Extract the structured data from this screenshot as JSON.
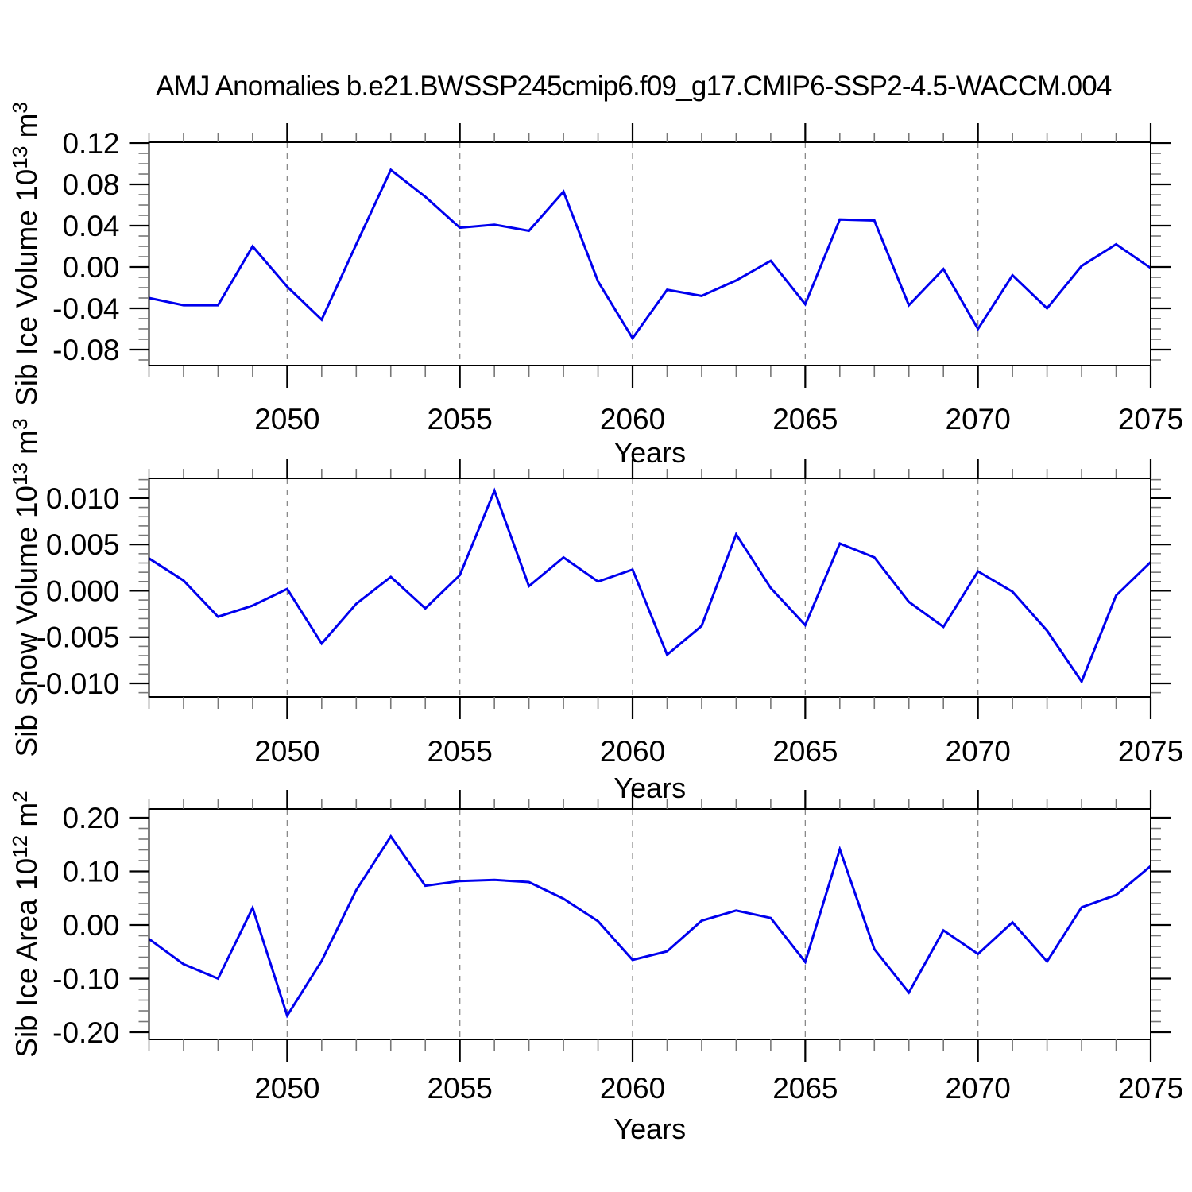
{
  "title": "AMJ Anomalies b.e21.BWSSP245cmip6.f09_g17.CMIP6-SSP2-4.5-WACCM.004",
  "figure": {
    "background": "#ffffff",
    "line_color": "#0000ee",
    "axis_color": "#000000",
    "minor_tick_color": "#777777",
    "grid_color": "#8a8a8a"
  },
  "chart_data": [
    {
      "type": "line",
      "id": "sib-ice-volume",
      "ylabel_text": "Sib Ice Volume 10^13 m^3",
      "ylabel_parts": [
        {
          "t": "Sib Ice Volume 10"
        },
        {
          "t": "13",
          "sup": true
        },
        {
          "t": " m"
        },
        {
          "t": "3",
          "sup": true
        }
      ],
      "xlabel": "Years",
      "x": [
        2046,
        2047,
        2048,
        2049,
        2050,
        2051,
        2052,
        2053,
        2054,
        2055,
        2056,
        2057,
        2058,
        2059,
        2060,
        2061,
        2062,
        2063,
        2064,
        2065,
        2066,
        2067,
        2068,
        2069,
        2070,
        2071,
        2072,
        2073,
        2074,
        2075
      ],
      "values": [
        -0.03,
        -0.037,
        -0.037,
        0.02,
        -0.019,
        -0.051,
        0.022,
        0.094,
        0.068,
        0.038,
        0.041,
        0.035,
        0.073,
        -0.014,
        -0.069,
        -0.022,
        -0.028,
        -0.013,
        0.006,
        -0.036,
        0.046,
        0.045,
        -0.037,
        -0.002,
        -0.06,
        -0.008,
        -0.04,
        0.001,
        0.022,
        -0.001
      ],
      "xlim": [
        2046,
        2075
      ],
      "ylim": [
        -0.0954,
        0.1208
      ],
      "yticks": [
        -0.08,
        -0.04,
        0,
        0.04,
        0.08,
        0.12
      ],
      "ytick_labels": [
        "-0.08",
        "-0.04",
        "0.00",
        "0.04",
        "0.08",
        "0.12"
      ],
      "y_minor_step": 0.01,
      "xticks": [
        2050,
        2055,
        2060,
        2065,
        2070,
        2075
      ],
      "xtick_labels": [
        "2050",
        "2055",
        "2060",
        "2065",
        "2070",
        "2075"
      ],
      "grid_years": [
        2050,
        2055,
        2060,
        2065,
        2070
      ],
      "grid": "dashed-vertical"
    },
    {
      "type": "line",
      "id": "sib-snow-volume",
      "ylabel_text": "Sib Snow Volume 10^13 m^3",
      "ylabel_parts": [
        {
          "t": "Sib Snow Volume 10"
        },
        {
          "t": "13",
          "sup": true
        },
        {
          "t": " m"
        },
        {
          "t": "3",
          "sup": true
        }
      ],
      "xlabel": "Years",
      "x": [
        2046,
        2047,
        2048,
        2049,
        2050,
        2051,
        2052,
        2053,
        2054,
        2055,
        2056,
        2057,
        2058,
        2059,
        2060,
        2061,
        2062,
        2063,
        2064,
        2065,
        2066,
        2067,
        2068,
        2069,
        2070,
        2071,
        2072,
        2073,
        2074,
        2075
      ],
      "values": [
        0.0035,
        0.0011,
        -0.0028,
        -0.0016,
        0.0002,
        -0.0057,
        -0.0014,
        0.0015,
        -0.0019,
        0.0017,
        0.0108,
        0.0005,
        0.0036,
        0.001,
        0.0023,
        -0.0069,
        -0.0038,
        0.0061,
        0.0003,
        -0.0037,
        0.0051,
        0.0036,
        -0.0012,
        -0.0039,
        0.0021,
        -0.0001,
        -0.0043,
        -0.0098,
        -0.0005,
        0.0031
      ],
      "xlim": [
        2046,
        2075
      ],
      "ylim": [
        -0.01146,
        0.01214
      ],
      "yticks": [
        -0.01,
        -0.005,
        0,
        0.005,
        0.01
      ],
      "ytick_labels": [
        "-0.010",
        "-0.005",
        "0.000",
        "0.005",
        "0.010"
      ],
      "y_minor_step": 0.001,
      "xticks": [
        2050,
        2055,
        2060,
        2065,
        2070,
        2075
      ],
      "xtick_labels": [
        "2050",
        "2055",
        "2060",
        "2065",
        "2070",
        "2075"
      ],
      "grid_years": [
        2050,
        2055,
        2060,
        2065,
        2070
      ],
      "grid": "dashed-vertical"
    },
    {
      "type": "line",
      "id": "sib-ice-area",
      "ylabel_text": "Sib Ice Area 10^12 m^2",
      "ylabel_parts": [
        {
          "t": "Sib Ice Area 10"
        },
        {
          "t": "12",
          "sup": true
        },
        {
          "t": " m"
        },
        {
          "t": "2",
          "sup": true
        }
      ],
      "xlabel": "Years",
      "x": [
        2046,
        2047,
        2048,
        2049,
        2050,
        2051,
        2052,
        2053,
        2054,
        2055,
        2056,
        2057,
        2058,
        2059,
        2060,
        2061,
        2062,
        2063,
        2064,
        2065,
        2066,
        2067,
        2068,
        2069,
        2070,
        2071,
        2072,
        2073,
        2074,
        2075
      ],
      "values": [
        -0.026,
        -0.073,
        -0.1,
        0.032,
        -0.169,
        -0.067,
        0.065,
        0.165,
        0.073,
        0.082,
        0.084,
        0.08,
        0.049,
        0.007,
        -0.065,
        -0.049,
        0.008,
        0.027,
        0.013,
        -0.069,
        0.141,
        -0.045,
        -0.126,
        -0.01,
        -0.054,
        0.005,
        -0.068,
        0.033,
        0.056,
        0.11
      ],
      "xlim": [
        2046,
        2075
      ],
      "ylim": [
        -0.2133,
        0.2163
      ],
      "yticks": [
        -0.2,
        -0.1,
        0,
        0.1,
        0.2
      ],
      "ytick_labels": [
        "-0.20",
        "-0.10",
        "0.00",
        "0.10",
        "0.20"
      ],
      "y_minor_step": 0.02,
      "xticks": [
        2050,
        2055,
        2060,
        2065,
        2070,
        2075
      ],
      "xtick_labels": [
        "2050",
        "2055",
        "2060",
        "2065",
        "2070",
        "2075"
      ],
      "grid_years": [
        2050,
        2055,
        2060,
        2065,
        2070
      ],
      "grid": "dashed-vertical"
    }
  ]
}
